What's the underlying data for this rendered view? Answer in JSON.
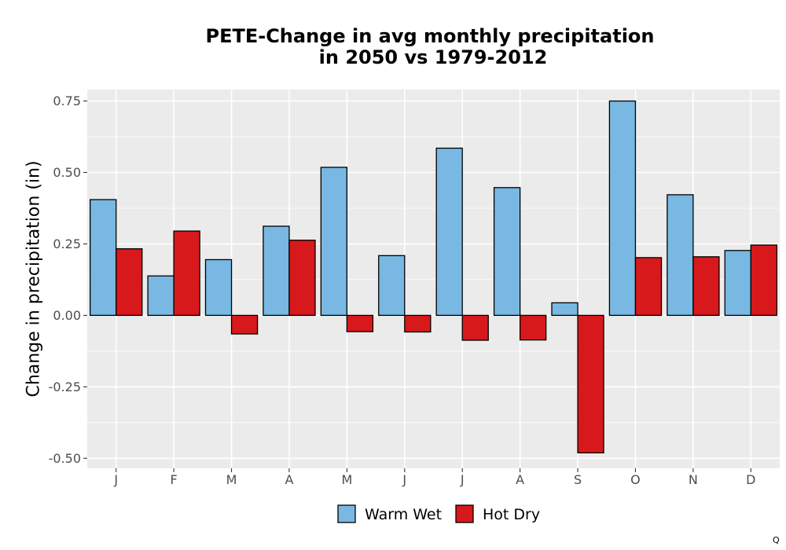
{
  "chart_data": {
    "type": "bar",
    "title": [
      "PETE-Change in avg monthly precipitation",
      "in 2050 vs 1979-2012"
    ],
    "xlabel": "",
    "ylabel": "Change in precipitation (in)",
    "categories": [
      "J",
      "F",
      "M",
      "A",
      "M",
      "J",
      "J",
      "A",
      "S",
      "O",
      "N",
      "D"
    ],
    "series": [
      {
        "name": "Warm Wet",
        "color": "#78b8e2",
        "values": [
          0.405,
          0.138,
          0.195,
          0.312,
          0.518,
          0.209,
          0.585,
          0.447,
          0.044,
          0.75,
          0.422,
          0.227
        ]
      },
      {
        "name": "Hot Dry",
        "color": "#d7191c",
        "values": [
          0.233,
          0.295,
          -0.065,
          0.263,
          -0.057,
          -0.058,
          -0.087,
          -0.086,
          -0.481,
          0.202,
          0.205,
          0.246
        ]
      }
    ],
    "ylim": [
      -0.535,
      0.79
    ],
    "yticks": [
      -0.5,
      -0.25,
      0.0,
      0.25,
      0.5,
      0.75
    ],
    "ytick_labels": [
      "-0.50",
      "-0.25",
      "0.00",
      "0.25",
      "0.50",
      "0.75"
    ],
    "grid": true,
    "legend_position": "bottom"
  },
  "corner_mark": "Q",
  "colors": {
    "panel_bg": "#ebebeb",
    "grid": "#ffffff",
    "bar_outline": "#000000"
  }
}
